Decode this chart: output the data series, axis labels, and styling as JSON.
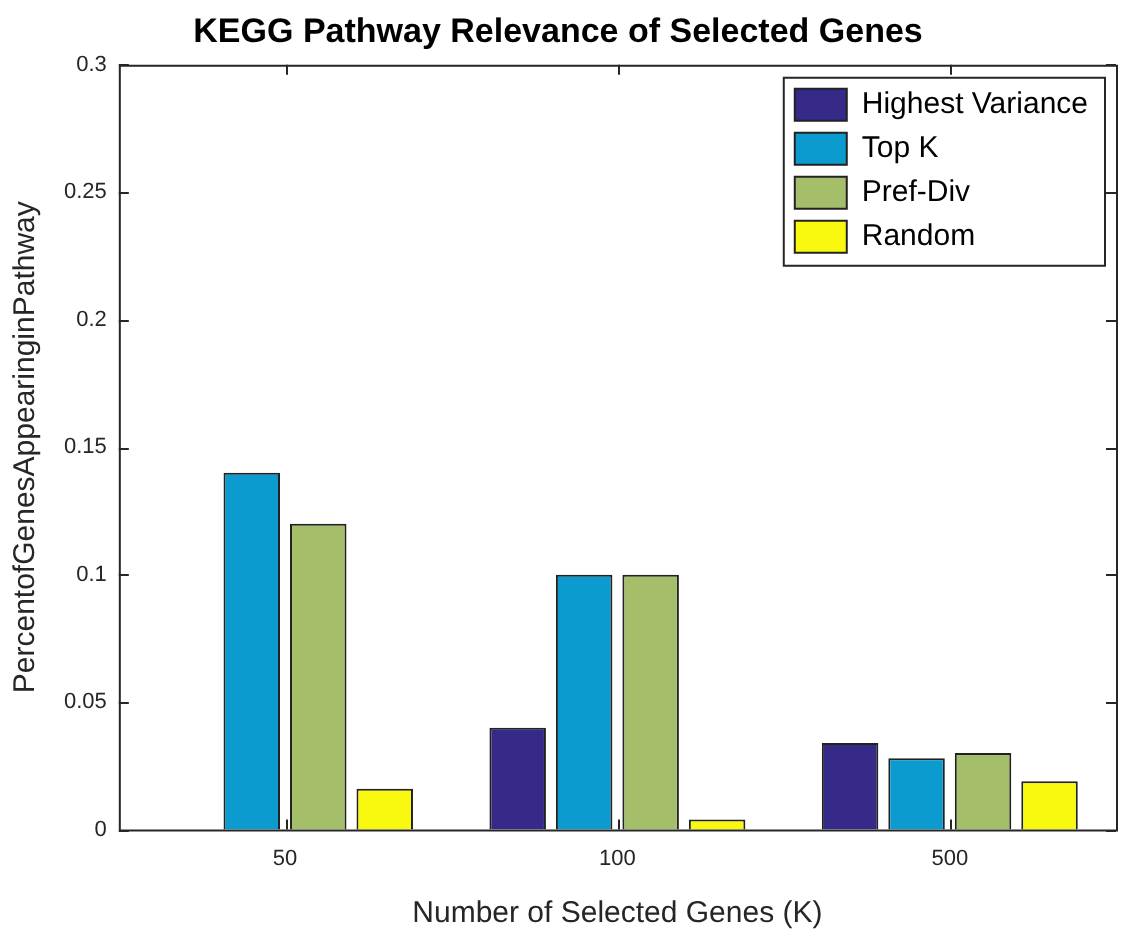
{
  "chart_data": {
    "type": "bar",
    "title": "KEGG Pathway Relevance of Selected Genes",
    "xlabel": "Number of Selected Genes (K)",
    "ylabel": "PercentofGenesAppearinginPathway",
    "categories": [
      "50",
      "100",
      "500"
    ],
    "series": [
      {
        "name": "Highest Variance",
        "color": "#352a87",
        "values": [
          0,
          0.04,
          0.034
        ]
      },
      {
        "name": "Top K",
        "color": "#0b9bcf",
        "values": [
          0.14,
          0.1,
          0.028
        ]
      },
      {
        "name": "Pref-Div",
        "color": "#a5be6a",
        "values": [
          0.12,
          0.1,
          0.03
        ]
      },
      {
        "name": "Random",
        "color": "#f9f90f",
        "values": [
          0.016,
          0.004,
          0.019
        ]
      }
    ],
    "ylim": [
      0,
      0.3
    ],
    "yticks": [
      0,
      0.05,
      0.1,
      0.15,
      0.2,
      0.25,
      0.3
    ],
    "grid": false,
    "legend": "top right"
  }
}
